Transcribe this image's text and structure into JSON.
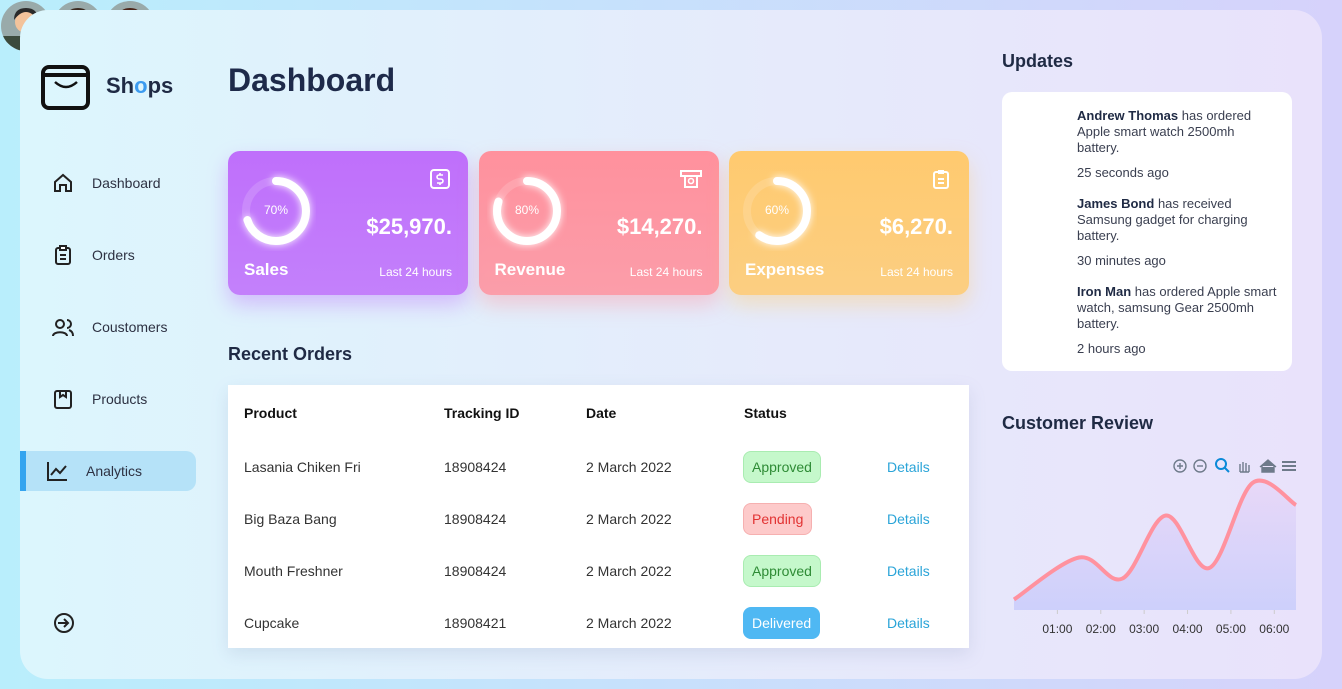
{
  "brand": [
    "Sh",
    "o",
    "ps"
  ],
  "nav": [
    "Dashboard",
    "Orders",
    "Coustomers",
    "Products",
    "Analytics"
  ],
  "active_nav": 4,
  "header": {
    "title": "Dashboard"
  },
  "cards": [
    {
      "title": "Sales",
      "percent": 70,
      "percent_label": "70%",
      "amount": "$25,970.",
      "period": "Last 24 hours",
      "color": "#bf6ffb"
    },
    {
      "title": "Revenue",
      "percent": 80,
      "percent_label": "80%",
      "amount": "$14,270.",
      "period": "Last 24 hours",
      "color": "#ff919d"
    },
    {
      "title": "Expenses",
      "percent": 60,
      "percent_label": "60%",
      "amount": "$6,270.",
      "period": "Last 24 hours",
      "color": "#ffca6f"
    }
  ],
  "orders": {
    "title": "Recent Orders",
    "columns": [
      "Product",
      "Tracking ID",
      "Date",
      "Status"
    ],
    "rows": [
      [
        "Lasania Chiken Fri",
        "18908424",
        "2 March 2022",
        "Approved",
        "Details"
      ],
      [
        "Big Baza Bang",
        "18908424",
        "2 March 2022",
        "Pending",
        "Details"
      ],
      [
        "Mouth Freshner",
        "18908424",
        "2 March 2022",
        "Approved",
        "Details"
      ],
      [
        "Cupcake",
        "18908421",
        "2 March 2022",
        "Delivered",
        "Details"
      ]
    ]
  },
  "updates": {
    "title": "Updates",
    "items": [
      {
        "name": "Andrew Thomas",
        "text": "has ordered Apple smart watch 2500mh battery.",
        "time": "25 seconds ago"
      },
      {
        "name": "James Bond",
        "text": "has received Samsung gadget for charging battery.",
        "time": "30 minutes ago"
      },
      {
        "name": "Iron Man",
        "text": "has ordered Apple smart watch, samsung Gear 2500mh battery.",
        "time": "2 hours ago"
      }
    ]
  },
  "chart_data": {
    "type": "area",
    "title": "Customer Review",
    "x": [
      0,
      1.5,
      2.5,
      3.5,
      4.5,
      5.5,
      6.5
    ],
    "values": [
      9,
      45,
      27,
      81,
      36,
      109,
      90
    ],
    "color": "#ff929f",
    "xlim": [
      0,
      6.5
    ],
    "xticks": [
      {
        "value": 1,
        "label": "01:00"
      },
      {
        "value": 2,
        "label": "02:00"
      },
      {
        "value": 3,
        "label": "03:00"
      },
      {
        "value": 4,
        "label": "04:00"
      },
      {
        "value": 5,
        "label": "05:00"
      },
      {
        "value": 6,
        "label": "06:00"
      }
    ],
    "ylim": [
      0,
      120
    ]
  }
}
